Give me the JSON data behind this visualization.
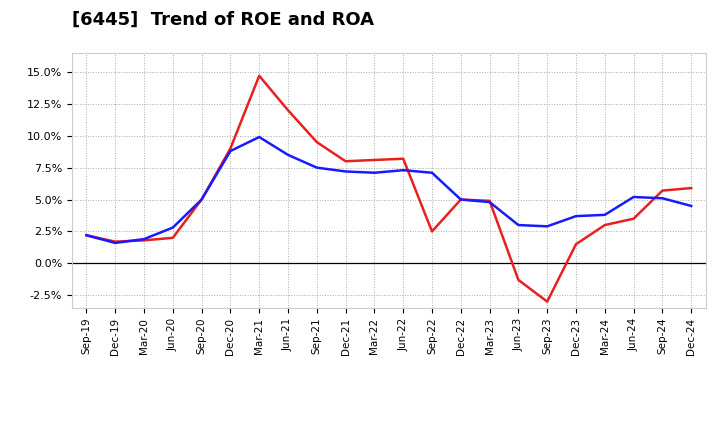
{
  "title": "[6445]  Trend of ROE and ROA",
  "x_labels": [
    "Sep-19",
    "Dec-19",
    "Mar-20",
    "Jun-20",
    "Sep-20",
    "Dec-20",
    "Mar-21",
    "Jun-21",
    "Sep-21",
    "Dec-21",
    "Mar-22",
    "Jun-22",
    "Sep-22",
    "Dec-22",
    "Mar-23",
    "Jun-23",
    "Sep-23",
    "Dec-23",
    "Mar-24",
    "Jun-24",
    "Sep-24",
    "Dec-24"
  ],
  "roe": [
    2.2,
    1.7,
    1.8,
    2.0,
    5.0,
    9.0,
    14.7,
    12.0,
    9.5,
    8.0,
    8.1,
    8.2,
    2.5,
    5.0,
    4.9,
    -1.3,
    -3.0,
    1.5,
    3.0,
    3.5,
    5.7,
    5.9
  ],
  "roa": [
    2.2,
    1.6,
    1.9,
    2.8,
    5.0,
    8.8,
    9.9,
    8.5,
    7.5,
    7.2,
    7.1,
    7.3,
    7.1,
    5.0,
    4.8,
    3.0,
    2.9,
    3.7,
    3.8,
    5.2,
    5.1,
    4.5
  ],
  "roe_color": "#e82020",
  "roa_color": "#1a1aff",
  "ylim": [
    -3.5,
    16.5
  ],
  "yticks": [
    -2.5,
    0.0,
    2.5,
    5.0,
    7.5,
    10.0,
    12.5,
    15.0
  ],
  "background_color": "#ffffff",
  "plot_bg_color": "#ffffff",
  "grid_color": "#aaaaaa",
  "title_fontsize": 13,
  "line_width": 1.8
}
